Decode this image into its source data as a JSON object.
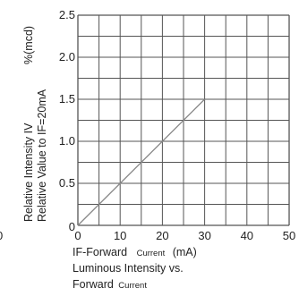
{
  "chart_data": {
    "type": "line",
    "x_ticks": [
      "0",
      "10",
      "20",
      "30",
      "40",
      "50"
    ],
    "y_ticks": [
      "0",
      "0.5",
      "1.0",
      "1.5",
      "2.0",
      "2.5"
    ],
    "xlim": [
      0,
      50
    ],
    "ylim": [
      0,
      2.5
    ],
    "grid": true,
    "legend": "none",
    "series": [
      {
        "x": [
          0,
          30
        ],
        "y": [
          0,
          1.5
        ],
        "color": "#888888"
      }
    ],
    "xlabel": {
      "main": "IF-Forward",
      "small": "Current",
      "unit": "(mA)"
    },
    "ylabel": {
      "line1": "Relative Intensity IV",
      "unit": "%(mcd)",
      "line2": "Relative Value to IF=20mA"
    },
    "title": {
      "line1": "Luminous Intensity vs.",
      "line2_main": "Forward",
      "line2_small": "Current"
    },
    "edge_fragment": "0"
  },
  "colors": {
    "grid": "#555555",
    "text": "#222222",
    "series": "#888888"
  }
}
